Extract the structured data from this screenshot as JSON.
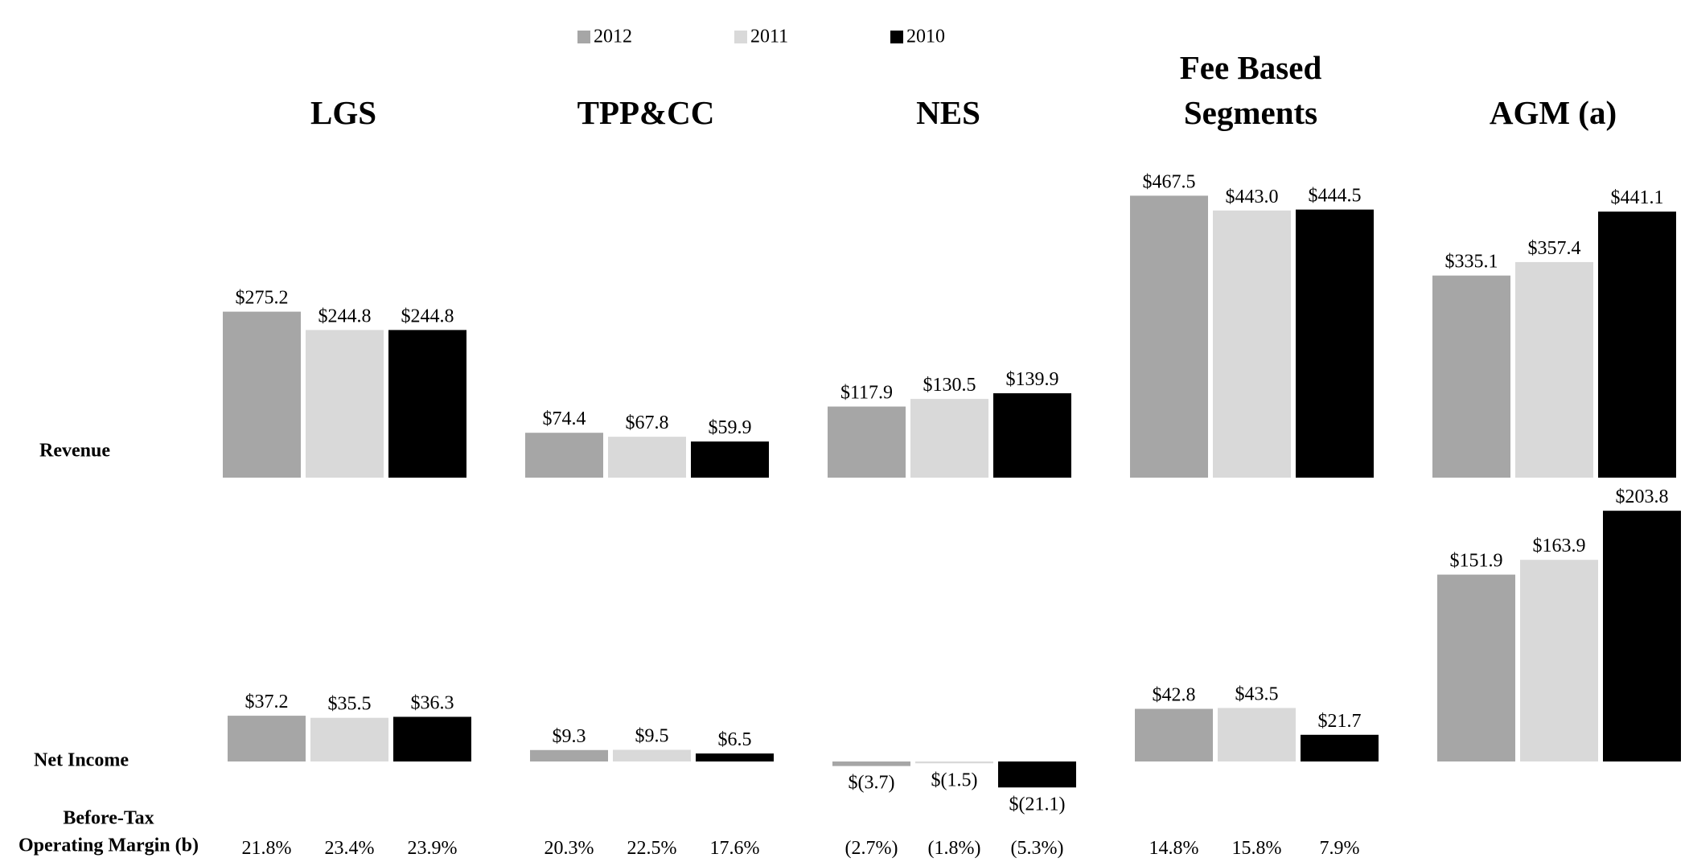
{
  "chart_data": {
    "type": "bar",
    "categories": [
      "LGS",
      "TPP&CC",
      "NES",
      "Fee Based Segments",
      "AGM (a)"
    ],
    "row_labels": {
      "revenue": "Revenue",
      "net_income": "Net Income",
      "margin": [
        "Before-Tax",
        "Operating Margin (b)"
      ]
    },
    "series": [
      {
        "name": "2012",
        "color": "#a6a6a6",
        "revenue": [
          275.2,
          74.4,
          117.9,
          467.5,
          335.1
        ],
        "revenue_labels": [
          "$275.2",
          "$74.4",
          "$117.9",
          "$467.5",
          "$335.1"
        ],
        "net_income": [
          37.2,
          9.3,
          -3.7,
          42.8,
          151.9
        ],
        "net_income_labels": [
          "$37.2",
          "$9.3",
          "$(3.7)",
          "$42.8",
          "$151.9"
        ],
        "margin": [
          21.8,
          20.3,
          -2.7,
          14.8,
          null
        ],
        "margin_labels": [
          "21.8%",
          "20.3%",
          "(2.7%)",
          "14.8%",
          null
        ]
      },
      {
        "name": "2011",
        "color": "#d9d9d9",
        "revenue": [
          244.8,
          67.8,
          130.5,
          443.0,
          357.4
        ],
        "revenue_labels": [
          "$244.8",
          "$67.8",
          "$130.5",
          "$443.0",
          "$357.4"
        ],
        "net_income": [
          35.5,
          9.5,
          -1.5,
          43.5,
          163.9
        ],
        "net_income_labels": [
          "$35.5",
          "$9.5",
          "$(1.5)",
          "$43.5",
          "$163.9"
        ],
        "margin": [
          23.4,
          22.5,
          -1.8,
          15.8,
          null
        ],
        "margin_labels": [
          "23.4%",
          "22.5%",
          "(1.8%)",
          "15.8%",
          null
        ]
      },
      {
        "name": "2010",
        "color": "#000000",
        "revenue": [
          244.8,
          59.9,
          139.9,
          444.5,
          441.1
        ],
        "revenue_labels": [
          "$244.8",
          "$59.9",
          "$139.9",
          "$444.5",
          "$441.1"
        ],
        "net_income": [
          36.3,
          6.5,
          -21.1,
          21.7,
          203.8
        ],
        "net_income_labels": [
          "$36.3",
          "$6.5",
          "$(21.1)",
          "$21.7",
          "$203.8"
        ],
        "margin": [
          23.9,
          17.6,
          -5.3,
          7.9,
          null
        ],
        "margin_labels": [
          "23.9%",
          "17.6%",
          "(5.3%)",
          "7.9%",
          null
        ]
      }
    ]
  }
}
